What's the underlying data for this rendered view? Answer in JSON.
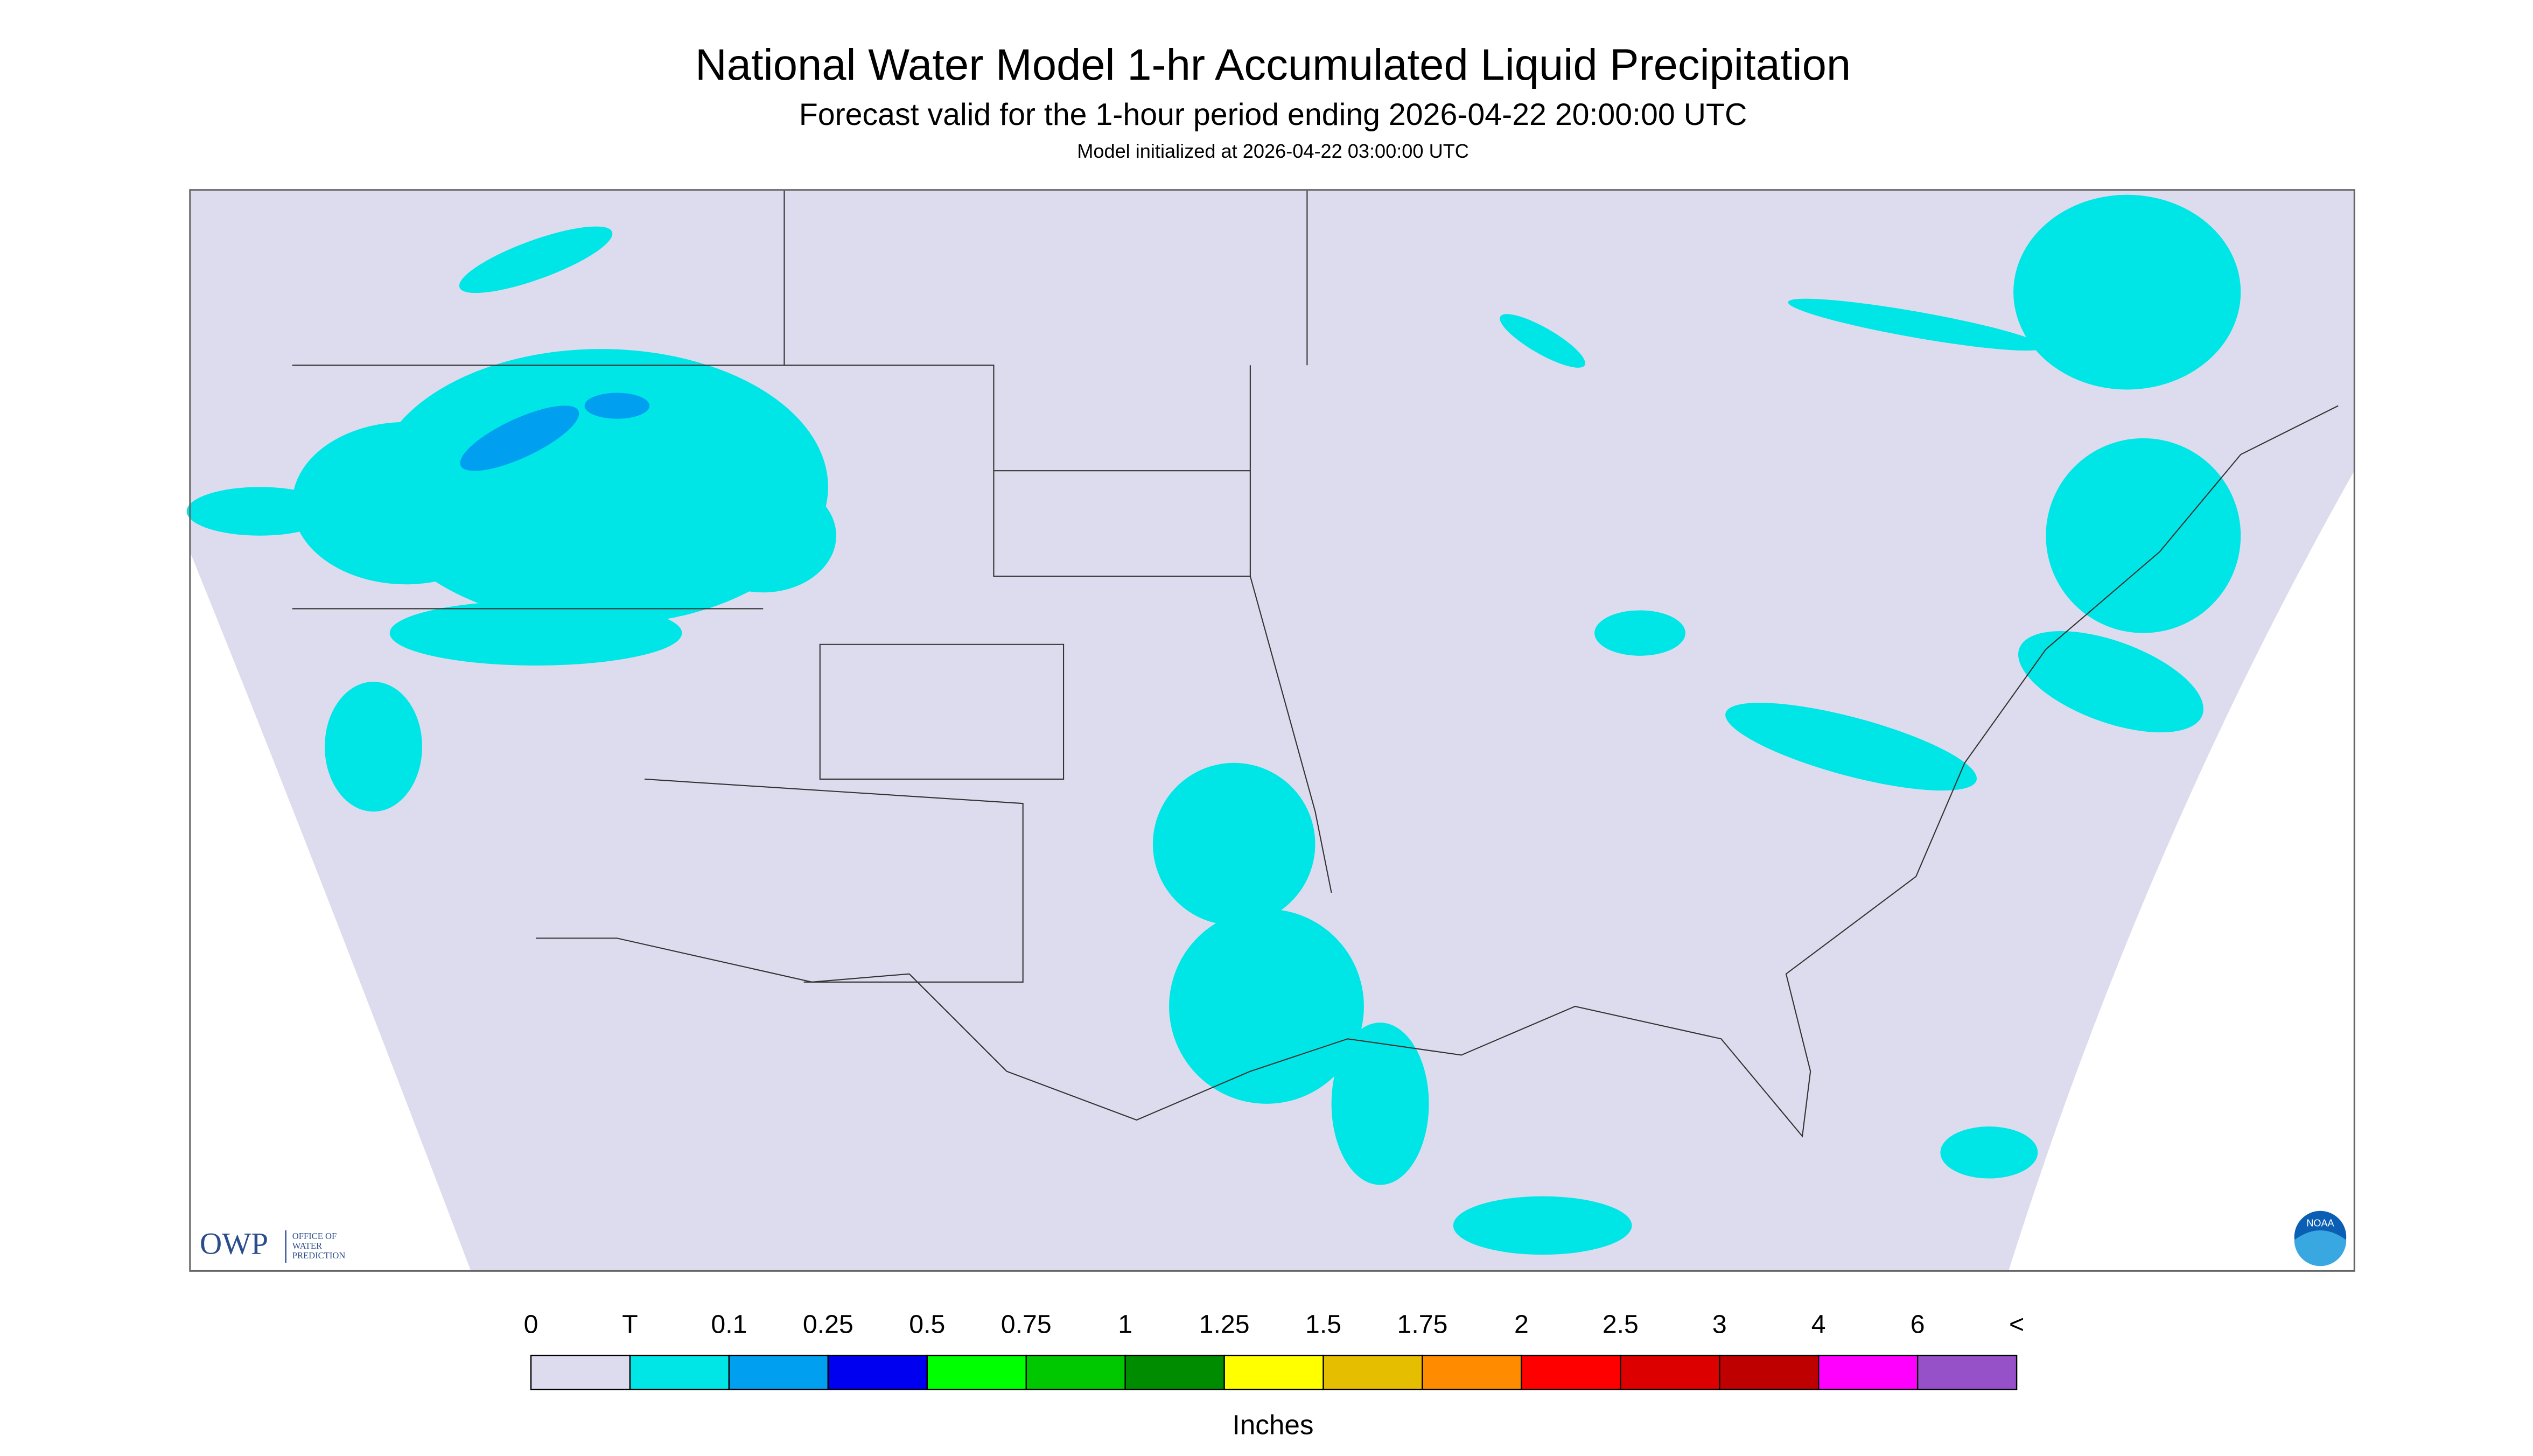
{
  "header": {
    "title": "National Water Model 1-hr Accumulated Liquid Precipitation",
    "subtitle": "Forecast valid for the 1-hour period ending 2026-04-22 20:00:00 UTC",
    "note": "Model initialized at 2026-04-22 03:00:00 UTC"
  },
  "logos": {
    "owp": "OWP",
    "owp_text": [
      "OFFICE OF",
      "WATER",
      "PREDICTION"
    ],
    "noaa": "NOAA"
  },
  "legend": {
    "labels": [
      "0",
      "T",
      "0.1",
      "0.25",
      "0.5",
      "0.75",
      "1",
      "1.25",
      "1.5",
      "1.75",
      "2",
      "2.5",
      "3",
      "4",
      "6",
      "<"
    ],
    "colors": [
      "#dcdcee",
      "#00e6e6",
      "#009ff0",
      "#0000f0",
      "#00ff00",
      "#00c800",
      "#008c00",
      "#ffff00",
      "#e6be00",
      "#ff8c00",
      "#ff0000",
      "#dc0000",
      "#be0000",
      "#ff00ff",
      "#9650c8"
    ],
    "unit": "Inches"
  }
}
